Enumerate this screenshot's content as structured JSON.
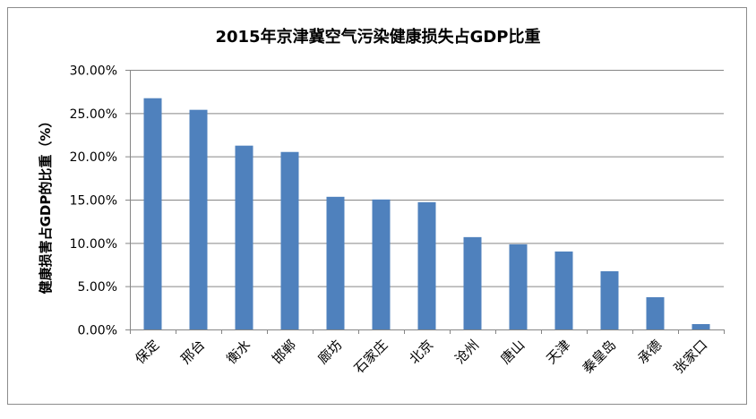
{
  "chart_data": {
    "type": "bar",
    "title": "2015年京津冀空气污染健康损失占GDP比重",
    "ylabel": "健康损害占GDP的比重（%）",
    "xlabel": "",
    "ylim": [
      0,
      30
    ],
    "yticks": [
      "0.00%",
      "5.00%",
      "10.00%",
      "15.00%",
      "20.00%",
      "25.00%",
      "30.00%"
    ],
    "grid": true,
    "bar_color": "#4f81bd",
    "categories": [
      "保定",
      "邢台",
      "衡水",
      "邯郸",
      "廊坊",
      "石家庄",
      "北京",
      "沧州",
      "唐山",
      "天津",
      "秦皇岛",
      "承德",
      "张家口"
    ],
    "values": [
      26.72,
      25.38,
      21.24,
      20.51,
      15.33,
      15.02,
      14.71,
      10.67,
      9.84,
      9.01,
      6.73,
      3.73,
      0.62
    ]
  }
}
